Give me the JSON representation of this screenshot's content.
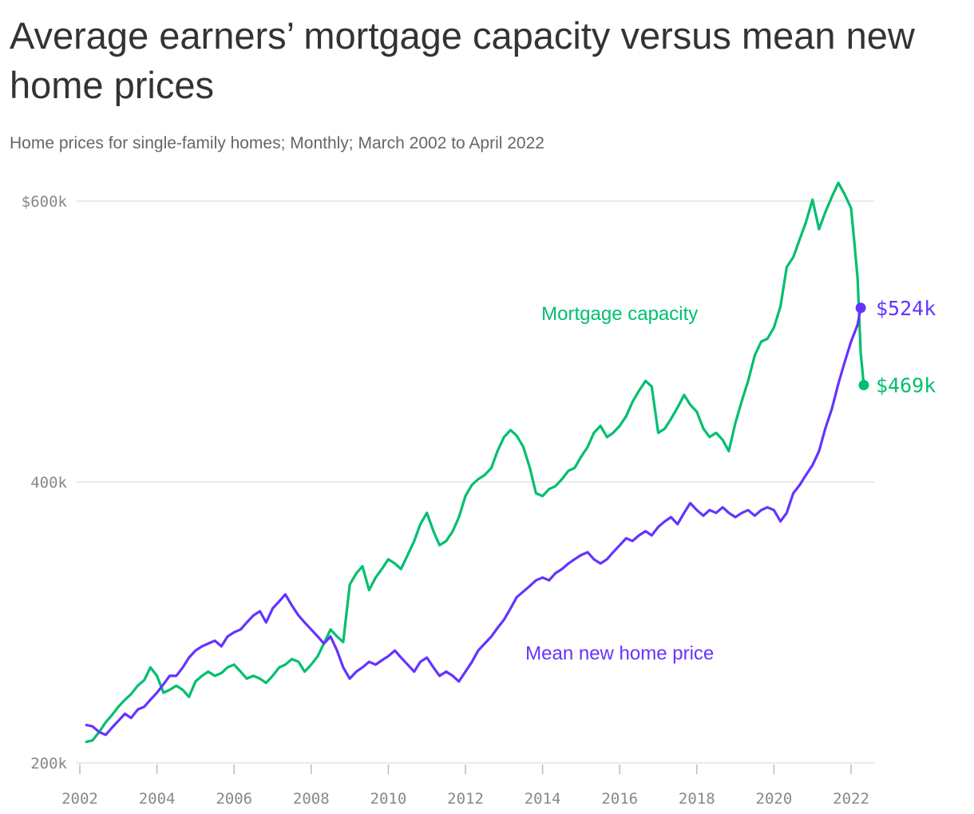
{
  "title": "Average earners’ mortgage capacity versus mean new home prices",
  "subtitle": "Home prices for single-family homes; Monthly; March 2002 to April 2022",
  "colors": {
    "mortgage": "#00bf6f",
    "price": "#6533ff",
    "grid": "#e3e3e3",
    "axis_text": "#888888"
  },
  "chart_data": {
    "type": "line",
    "title": "Average earners’ mortgage capacity versus mean new home prices",
    "subtitle": "Home prices for single-family homes; Monthly; March 2002 to April 2022",
    "xlabel": "",
    "ylabel": "",
    "xlim": [
      2002,
      2022.6
    ],
    "ylim": [
      200,
      600
    ],
    "x_ticks": [
      2002,
      2004,
      2006,
      2008,
      2010,
      2012,
      2014,
      2016,
      2018,
      2020,
      2022
    ],
    "x_tick_labels": [
      "2002",
      "2004",
      "2006",
      "2008",
      "2010",
      "2012",
      "2014",
      "2016",
      "2018",
      "2020",
      "2022"
    ],
    "y_ticks": [
      200,
      400,
      600
    ],
    "y_tick_labels": [
      "200k",
      "400k",
      "$600k"
    ],
    "grid": true,
    "series": [
      {
        "name": "Mortgage capacity",
        "color": "#00bf6f",
        "end_label": "$469k",
        "points": [
          [
            2002.17,
            215
          ],
          [
            2002.33,
            216
          ],
          [
            2002.5,
            222
          ],
          [
            2002.67,
            229
          ],
          [
            2002.83,
            234
          ],
          [
            2003.0,
            240
          ],
          [
            2003.17,
            245
          ],
          [
            2003.33,
            249
          ],
          [
            2003.5,
            255
          ],
          [
            2003.67,
            259
          ],
          [
            2003.83,
            268
          ],
          [
            2004.0,
            262
          ],
          [
            2004.17,
            250
          ],
          [
            2004.33,
            252
          ],
          [
            2004.5,
            255
          ],
          [
            2004.67,
            252
          ],
          [
            2004.83,
            247
          ],
          [
            2005.0,
            258
          ],
          [
            2005.17,
            262
          ],
          [
            2005.33,
            265
          ],
          [
            2005.5,
            262
          ],
          [
            2005.67,
            264
          ],
          [
            2005.83,
            268
          ],
          [
            2006.0,
            270
          ],
          [
            2006.17,
            265
          ],
          [
            2006.33,
            260
          ],
          [
            2006.5,
            262
          ],
          [
            2006.67,
            260
          ],
          [
            2006.83,
            257
          ],
          [
            2007.0,
            262
          ],
          [
            2007.17,
            268
          ],
          [
            2007.33,
            270
          ],
          [
            2007.5,
            274
          ],
          [
            2007.67,
            272
          ],
          [
            2007.83,
            265
          ],
          [
            2008.0,
            270
          ],
          [
            2008.17,
            276
          ],
          [
            2008.33,
            285
          ],
          [
            2008.5,
            295
          ],
          [
            2008.67,
            290
          ],
          [
            2008.83,
            286
          ],
          [
            2009.0,
            327
          ],
          [
            2009.17,
            335
          ],
          [
            2009.33,
            340
          ],
          [
            2009.5,
            323
          ],
          [
            2009.67,
            332
          ],
          [
            2009.83,
            338
          ],
          [
            2010.0,
            345
          ],
          [
            2010.17,
            342
          ],
          [
            2010.33,
            338
          ],
          [
            2010.5,
            348
          ],
          [
            2010.67,
            358
          ],
          [
            2010.83,
            370
          ],
          [
            2011.0,
            378
          ],
          [
            2011.17,
            365
          ],
          [
            2011.33,
            355
          ],
          [
            2011.5,
            358
          ],
          [
            2011.67,
            365
          ],
          [
            2011.83,
            375
          ],
          [
            2012.0,
            390
          ],
          [
            2012.17,
            398
          ],
          [
            2012.33,
            402
          ],
          [
            2012.5,
            405
          ],
          [
            2012.67,
            410
          ],
          [
            2012.83,
            422
          ],
          [
            2013.0,
            432
          ],
          [
            2013.17,
            437
          ],
          [
            2013.33,
            433
          ],
          [
            2013.5,
            425
          ],
          [
            2013.67,
            410
          ],
          [
            2013.83,
            392
          ],
          [
            2014.0,
            390
          ],
          [
            2014.17,
            395
          ],
          [
            2014.33,
            397
          ],
          [
            2014.5,
            402
          ],
          [
            2014.67,
            408
          ],
          [
            2014.83,
            410
          ],
          [
            2015.0,
            418
          ],
          [
            2015.17,
            425
          ],
          [
            2015.33,
            435
          ],
          [
            2015.5,
            440
          ],
          [
            2015.67,
            432
          ],
          [
            2015.83,
            435
          ],
          [
            2016.0,
            440
          ],
          [
            2016.17,
            447
          ],
          [
            2016.33,
            457
          ],
          [
            2016.5,
            465
          ],
          [
            2016.67,
            472
          ],
          [
            2016.83,
            468
          ],
          [
            2017.0,
            435
          ],
          [
            2017.17,
            438
          ],
          [
            2017.33,
            445
          ],
          [
            2017.5,
            453
          ],
          [
            2017.67,
            462
          ],
          [
            2017.83,
            455
          ],
          [
            2018.0,
            450
          ],
          [
            2018.17,
            438
          ],
          [
            2018.33,
            432
          ],
          [
            2018.5,
            435
          ],
          [
            2018.67,
            430
          ],
          [
            2018.83,
            422
          ],
          [
            2019.0,
            442
          ],
          [
            2019.17,
            458
          ],
          [
            2019.33,
            472
          ],
          [
            2019.5,
            490
          ],
          [
            2019.67,
            500
          ],
          [
            2019.83,
            502
          ],
          [
            2020.0,
            510
          ],
          [
            2020.17,
            525
          ],
          [
            2020.33,
            553
          ],
          [
            2020.5,
            560
          ],
          [
            2020.67,
            573
          ],
          [
            2020.83,
            585
          ],
          [
            2021.0,
            601
          ],
          [
            2021.17,
            580
          ],
          [
            2021.33,
            592
          ],
          [
            2021.5,
            603
          ],
          [
            2021.67,
            613
          ],
          [
            2021.83,
            605
          ],
          [
            2022.0,
            595
          ],
          [
            2022.08,
            572
          ],
          [
            2022.17,
            545
          ],
          [
            2022.25,
            492
          ],
          [
            2022.33,
            469
          ]
        ]
      },
      {
        "name": "Mean new home price",
        "color": "#6533ff",
        "end_label": "$524k",
        "points": [
          [
            2002.17,
            227
          ],
          [
            2002.33,
            226
          ],
          [
            2002.5,
            222
          ],
          [
            2002.67,
            220
          ],
          [
            2002.83,
            225
          ],
          [
            2003.0,
            230
          ],
          [
            2003.17,
            235
          ],
          [
            2003.33,
            232
          ],
          [
            2003.5,
            238
          ],
          [
            2003.67,
            240
          ],
          [
            2003.83,
            245
          ],
          [
            2004.0,
            250
          ],
          [
            2004.17,
            256
          ],
          [
            2004.33,
            262
          ],
          [
            2004.5,
            262
          ],
          [
            2004.67,
            268
          ],
          [
            2004.83,
            275
          ],
          [
            2005.0,
            280
          ],
          [
            2005.17,
            283
          ],
          [
            2005.33,
            285
          ],
          [
            2005.5,
            287
          ],
          [
            2005.67,
            283
          ],
          [
            2005.83,
            290
          ],
          [
            2006.0,
            293
          ],
          [
            2006.17,
            295
          ],
          [
            2006.33,
            300
          ],
          [
            2006.5,
            305
          ],
          [
            2006.67,
            308
          ],
          [
            2006.83,
            300
          ],
          [
            2007.0,
            310
          ],
          [
            2007.17,
            315
          ],
          [
            2007.33,
            320
          ],
          [
            2007.5,
            312
          ],
          [
            2007.67,
            305
          ],
          [
            2007.83,
            300
          ],
          [
            2008.0,
            295
          ],
          [
            2008.17,
            290
          ],
          [
            2008.33,
            285
          ],
          [
            2008.5,
            290
          ],
          [
            2008.67,
            280
          ],
          [
            2008.83,
            268
          ],
          [
            2009.0,
            260
          ],
          [
            2009.17,
            265
          ],
          [
            2009.33,
            268
          ],
          [
            2009.5,
            272
          ],
          [
            2009.67,
            270
          ],
          [
            2009.83,
            273
          ],
          [
            2010.0,
            276
          ],
          [
            2010.17,
            280
          ],
          [
            2010.33,
            275
          ],
          [
            2010.5,
            270
          ],
          [
            2010.67,
            265
          ],
          [
            2010.83,
            272
          ],
          [
            2011.0,
            275
          ],
          [
            2011.17,
            268
          ],
          [
            2011.33,
            262
          ],
          [
            2011.5,
            265
          ],
          [
            2011.67,
            262
          ],
          [
            2011.83,
            258
          ],
          [
            2012.0,
            265
          ],
          [
            2012.17,
            272
          ],
          [
            2012.33,
            280
          ],
          [
            2012.5,
            285
          ],
          [
            2012.67,
            290
          ],
          [
            2012.83,
            296
          ],
          [
            2013.0,
            302
          ],
          [
            2013.17,
            310
          ],
          [
            2013.33,
            318
          ],
          [
            2013.5,
            322
          ],
          [
            2013.67,
            326
          ],
          [
            2013.83,
            330
          ],
          [
            2014.0,
            332
          ],
          [
            2014.17,
            330
          ],
          [
            2014.33,
            335
          ],
          [
            2014.5,
            338
          ],
          [
            2014.67,
            342
          ],
          [
            2014.83,
            345
          ],
          [
            2015.0,
            348
          ],
          [
            2015.17,
            350
          ],
          [
            2015.33,
            345
          ],
          [
            2015.5,
            342
          ],
          [
            2015.67,
            345
          ],
          [
            2015.83,
            350
          ],
          [
            2016.0,
            355
          ],
          [
            2016.17,
            360
          ],
          [
            2016.33,
            358
          ],
          [
            2016.5,
            362
          ],
          [
            2016.67,
            365
          ],
          [
            2016.83,
            362
          ],
          [
            2017.0,
            368
          ],
          [
            2017.17,
            372
          ],
          [
            2017.33,
            375
          ],
          [
            2017.5,
            370
          ],
          [
            2017.67,
            378
          ],
          [
            2017.83,
            385
          ],
          [
            2018.0,
            380
          ],
          [
            2018.17,
            376
          ],
          [
            2018.33,
            380
          ],
          [
            2018.5,
            378
          ],
          [
            2018.67,
            382
          ],
          [
            2018.83,
            378
          ],
          [
            2019.0,
            375
          ],
          [
            2019.17,
            378
          ],
          [
            2019.33,
            380
          ],
          [
            2019.5,
            376
          ],
          [
            2019.67,
            380
          ],
          [
            2019.83,
            382
          ],
          [
            2020.0,
            380
          ],
          [
            2020.17,
            372
          ],
          [
            2020.33,
            378
          ],
          [
            2020.5,
            392
          ],
          [
            2020.67,
            398
          ],
          [
            2020.83,
            405
          ],
          [
            2021.0,
            412
          ],
          [
            2021.17,
            422
          ],
          [
            2021.33,
            438
          ],
          [
            2021.5,
            452
          ],
          [
            2021.67,
            470
          ],
          [
            2021.83,
            485
          ],
          [
            2022.0,
            500
          ],
          [
            2022.17,
            512
          ],
          [
            2022.25,
            524
          ]
        ]
      }
    ],
    "annotations": [
      {
        "text": "Mortgage capacity",
        "x": 2016.0,
        "y": 520,
        "series": "Mortgage capacity"
      },
      {
        "text": "Mean new home price",
        "x": 2016.0,
        "y": 278,
        "series": "Mean new home price"
      }
    ]
  }
}
